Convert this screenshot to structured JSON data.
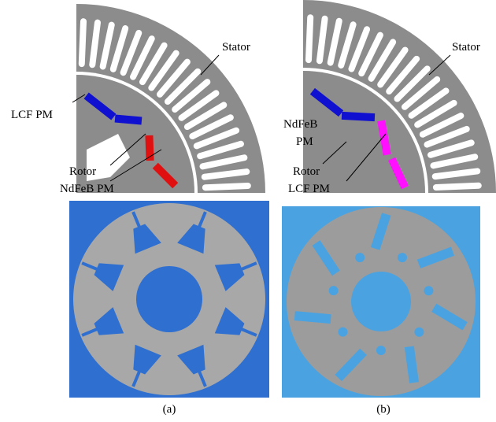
{
  "panels": [
    {
      "labels": {
        "stator": "Stator",
        "pm1": "LCF PM",
        "rotor": "Rotor",
        "pm2": "NdFeB PM"
      },
      "caption": "(a)"
    },
    {
      "labels": {
        "stator": "Stator",
        "pm1_line1": "NdFeB",
        "pm1_line2": "PM",
        "rotor": "Rotor",
        "pm2": "LCF PM"
      },
      "caption": "(b)"
    }
  ]
}
